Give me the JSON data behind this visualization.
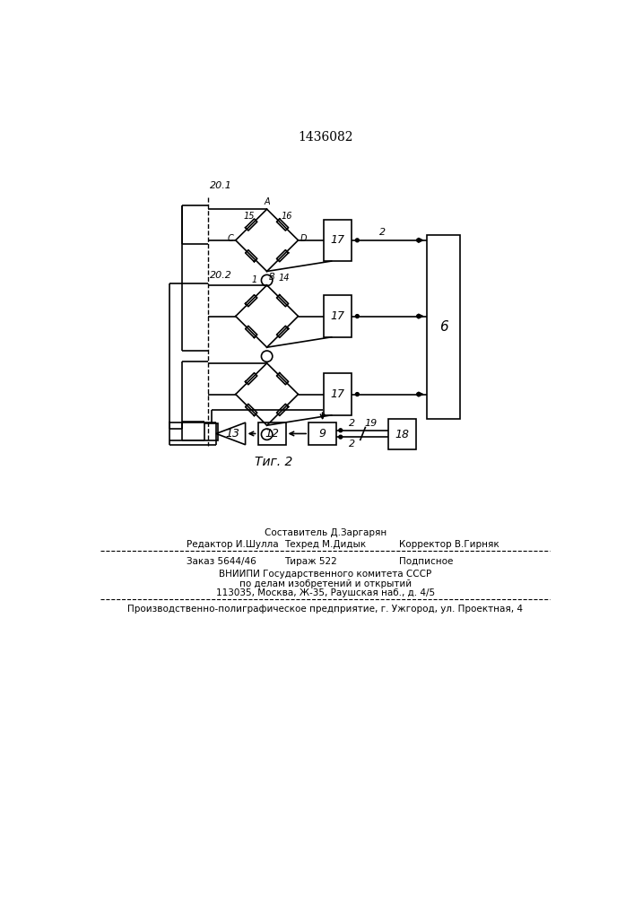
{
  "title": "1436082",
  "background_color": "#ffffff",
  "line_color": "#000000",
  "text_color": "#000000",
  "fig_caption": "Τиг. 2",
  "label_20_1": "20.1",
  "label_20_2": "20.2",
  "footer_sestavitel": "Составитель Д.Заргарян",
  "footer_redaktor": "Редактор И.Шулла",
  "footer_tehred": "Техред М.Дидык",
  "footer_korrektor": "Корректор В.Гирняк",
  "footer_zakaz": "Заказ 5644/46",
  "footer_tirazh": "Тираж 522",
  "footer_podpisnoe": "Подписное",
  "footer_vniip1": "ВНИИПИ Государственного комитета СССР",
  "footer_vniip2": "по делам изобретений и открытий",
  "footer_vniip3": "113035, Москва, Ж-35, Раушская наб., д. 4/5",
  "footer_proizv": "Производственно-полиграфическое предприятие, г. Ужгород, ул. Проектная, 4"
}
